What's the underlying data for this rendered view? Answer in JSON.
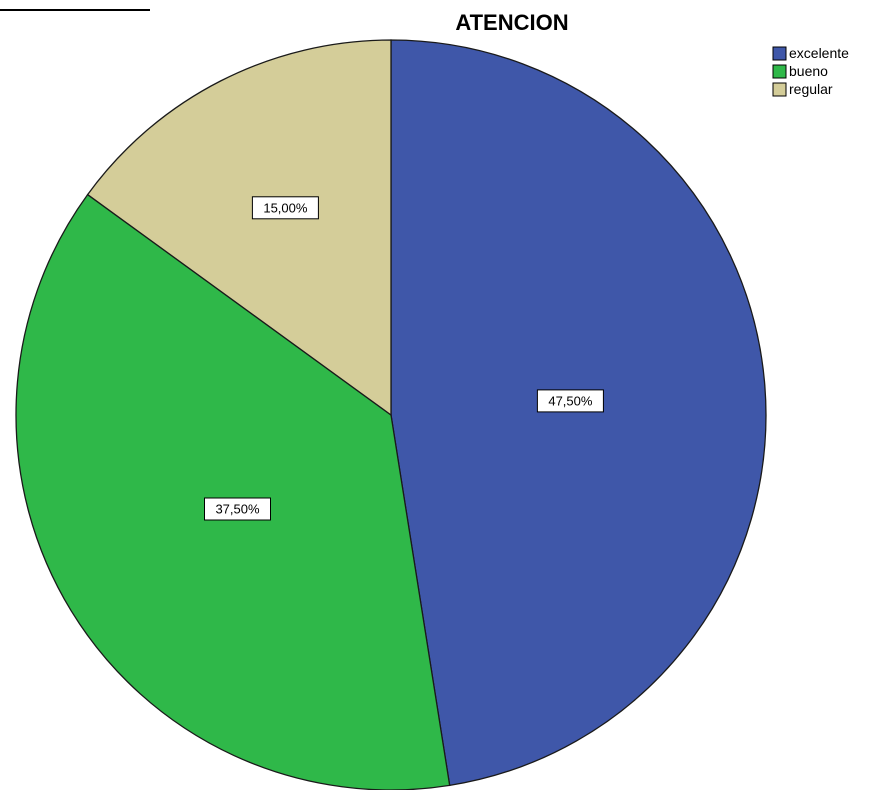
{
  "chart_data": {
    "type": "pie",
    "title": "ATENCION",
    "categories": [
      "excelente",
      "bueno",
      "regular"
    ],
    "values": [
      47.5,
      37.5,
      15.0
    ],
    "labels": [
      "47,50%",
      "37,50%",
      "15,00%"
    ],
    "colors": [
      "#3F57A9",
      "#2FB849",
      "#D4CD99"
    ],
    "start": "12 o'clock",
    "direction": "clockwise",
    "legend": {
      "position": "top-right",
      "entries": [
        "excelente",
        "bueno",
        "regular"
      ]
    }
  }
}
